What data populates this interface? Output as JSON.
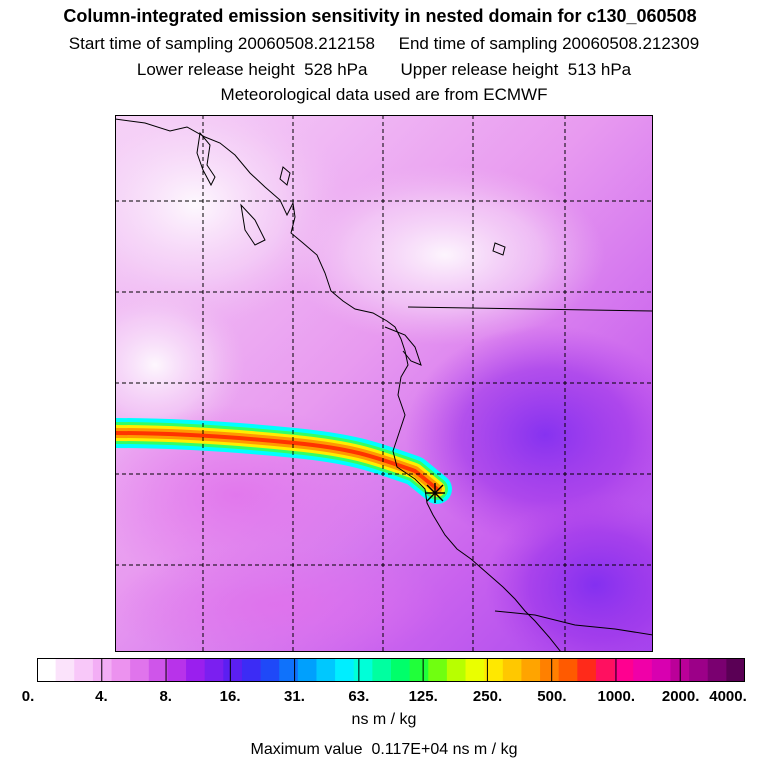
{
  "header": {
    "title": "Column-integrated emission sensitivity in nested domain for c130_060508",
    "sampling_line": "Start time of sampling 20060508.212158     End time of sampling 20060508.212309",
    "height_line": "Lower release height  528 hPa       Upper release height  513 hPa",
    "met_line": "Meteorological data used are from ECMWF"
  },
  "map": {
    "field": "Column-integrated emission sensitivity",
    "source_marker": "release-location-star",
    "background_color": "#ee9cf0",
    "plume_colors": [
      "#00ffff",
      "#33ff66",
      "#ccff00",
      "#ffee00",
      "#ff9900",
      "#ff3300"
    ]
  },
  "colorbar": {
    "colors": [
      "#ffffff",
      "#fbe3fb",
      "#f8c8f9",
      "#f3aef5",
      "#ec92ef",
      "#e074ec",
      "#cf55ea",
      "#b833ea",
      "#9a1fee",
      "#7b1ff0",
      "#5c1ff2",
      "#3c2cf5",
      "#1f49f8",
      "#0f72fb",
      "#00a0fd",
      "#00c8fe",
      "#00eeff",
      "#00ffd8",
      "#00ffa0",
      "#00ff6a",
      "#20ff3a",
      "#70ff10",
      "#b8ff00",
      "#eaff00",
      "#ffe800",
      "#ffc800",
      "#ffa400",
      "#ff8000",
      "#ff5a00",
      "#ff2a1a",
      "#ff1060",
      "#ff0090",
      "#f000a8",
      "#d800b0",
      "#bb0099",
      "#9c0088",
      "#7a0070",
      "#5a0055"
    ],
    "ticks": [
      "0.",
      "4.",
      "8.",
      "16.",
      "31.",
      "63.",
      "125.",
      "250.",
      "500.",
      "1000.",
      "2000.",
      "4000."
    ],
    "units": "ns m / kg",
    "max_value_text": "Maximum value  0.117E+04 ns m / kg"
  }
}
